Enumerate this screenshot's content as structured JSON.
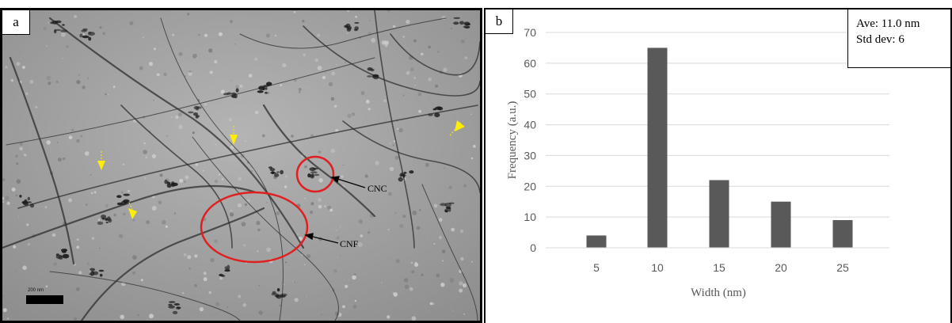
{
  "panel_a": {
    "label": "a",
    "annotations": {
      "cnc": "CNC",
      "cnf": "CNF",
      "scale_bar": "200 nm"
    },
    "colors": {
      "circle": "#e02020",
      "arrow_marker": "#ffee00",
      "pointer_arrow": "#000000"
    }
  },
  "panel_b": {
    "label": "b",
    "stats": {
      "average": "Ave: 11.0 nm",
      "std_dev": "Std dev: 6"
    }
  },
  "chart_data": {
    "type": "bar",
    "categories": [
      "5",
      "10",
      "15",
      "20",
      "25"
    ],
    "values": [
      4,
      65,
      22,
      15,
      9
    ],
    "xlabel": "Width (nm)",
    "ylabel": "Frequency (a.u.)",
    "ylim": [
      0,
      70
    ],
    "yticks": [
      "0",
      "10",
      "20",
      "30",
      "40",
      "50",
      "60",
      "70"
    ],
    "grid": true,
    "bar_color": "#595959",
    "grid_color": "#d9d9d9"
  }
}
